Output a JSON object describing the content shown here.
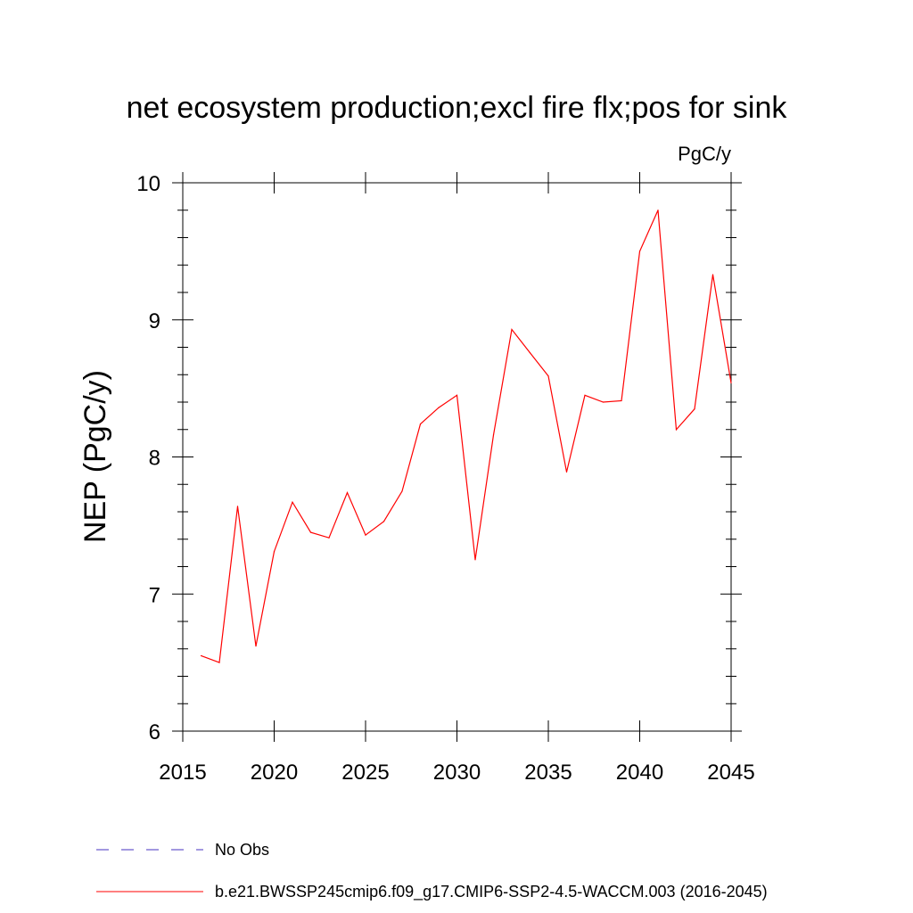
{
  "chart_data": {
    "type": "line",
    "title": "net ecosystem production;excl fire flx;pos for sink",
    "units_label": "PgC/y",
    "ylabel": "NEP  (PgC/y)",
    "xlabel": "",
    "xlim": [
      2015,
      2045
    ],
    "ylim": [
      6,
      10
    ],
    "x_ticks": [
      2015,
      2020,
      2025,
      2030,
      2035,
      2040,
      2045
    ],
    "x_tick_labels": [
      "2015",
      "2020",
      "2025",
      "2030",
      "2035",
      "2040",
      "2045"
    ],
    "y_ticks": [
      6,
      7,
      8,
      9,
      10
    ],
    "y_tick_labels": [
      "6",
      "7",
      "8",
      "9",
      "10"
    ],
    "grid": false,
    "series": [
      {
        "name": "b.e21.BWSSP245cmip6.f09_g17.CMIP6-SSP2-4.5-WACCM.003 (2016-2045)",
        "color": "#ff0000",
        "style": "solid",
        "x": [
          2016,
          2017,
          2018,
          2019,
          2020,
          2021,
          2022,
          2023,
          2024,
          2025,
          2026,
          2027,
          2028,
          2029,
          2030,
          2031,
          2032,
          2033,
          2034,
          2035,
          2036,
          2037,
          2038,
          2039,
          2040,
          2041,
          2042,
          2043,
          2044,
          2045
        ],
        "y": [
          6.55,
          6.5,
          7.64,
          6.62,
          7.31,
          7.67,
          7.45,
          7.41,
          7.74,
          7.43,
          7.53,
          7.75,
          8.24,
          8.36,
          8.45,
          7.25,
          8.16,
          8.93,
          8.76,
          8.59,
          7.89,
          8.45,
          8.4,
          8.41,
          9.5,
          9.8,
          8.2,
          8.35,
          9.33,
          8.54
        ]
      }
    ],
    "legend": {
      "placement": "bottom-left",
      "entries": [
        {
          "label": "No Obs",
          "color": "#6a5acd",
          "style": "dashed"
        },
        {
          "label": "b.e21.BWSSP245cmip6.f09_g17.CMIP6-SSP2-4.5-WACCM.003 (2016-2045)",
          "color": "#ff0000",
          "style": "solid"
        }
      ]
    }
  }
}
